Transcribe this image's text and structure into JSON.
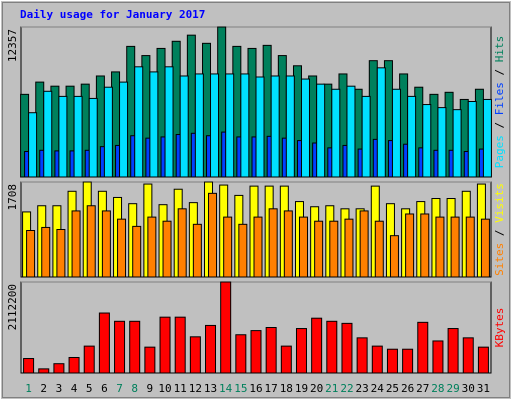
{
  "title": "Daily usage for January 2017",
  "title_color": "#0000ff",
  "categories": [
    "1",
    "2",
    "3",
    "4",
    "5",
    "6",
    "7",
    "8",
    "9",
    "10",
    "11",
    "12",
    "13",
    "14",
    "15",
    "16",
    "17",
    "18",
    "19",
    "20",
    "21",
    "22",
    "23",
    "24",
    "25",
    "26",
    "27",
    "28",
    "29",
    "30",
    "31"
  ],
  "category_colors": [
    "#00805c",
    "#000000",
    "#000000",
    "#000000",
    "#000000",
    "#000000",
    "#00805c",
    "#00805c",
    "#000000",
    "#000000",
    "#000000",
    "#000000",
    "#000000",
    "#00805c",
    "#00805c",
    "#000000",
    "#000000",
    "#000000",
    "#000000",
    "#000000",
    "#00805c",
    "#00805c",
    "#000000",
    "#000000",
    "#000000",
    "#000000",
    "#000000",
    "#00805c",
    "#00805c",
    "#000000",
    "#000000"
  ],
  "chart_data": [
    {
      "type": "bar",
      "legend_separator": " / ",
      "ylim": [
        0,
        12357
      ],
      "yticks": [
        12357
      ],
      "series": [
        {
          "name": "Pages",
          "color": "#00e0ff",
          "values": [
            5296,
            7061,
            6641,
            6641,
            6473,
            7397,
            7818,
            9078,
            8658,
            9078,
            8322,
            8490,
            8490,
            8490,
            8490,
            8238,
            8322,
            8322,
            8070,
            7650,
            7229,
            7481,
            6641,
            8994,
            7229,
            6641,
            5968,
            5716,
            5548,
            6220,
            6389
          ]
        },
        {
          "name": "Files",
          "color": "#0040ff",
          "values": [
            2100,
            2200,
            2150,
            2150,
            2200,
            2500,
            2600,
            3400,
            3200,
            3300,
            3500,
            3600,
            3400,
            3700,
            3300,
            3300,
            3350,
            3200,
            3000,
            2800,
            2400,
            2600,
            2300,
            3100,
            3000,
            2700,
            2400,
            2200,
            2200,
            2100,
            2300
          ]
        },
        {
          "name": "Hits",
          "color": "#00805c",
          "values": [
            6809,
            7818,
            7482,
            7482,
            7650,
            8322,
            8658,
            10760,
            10003,
            10592,
            11180,
            11685,
            11012,
            12357,
            10760,
            10592,
            10844,
            10003,
            9163,
            8322,
            7650,
            8490,
            7229,
            9583,
            9583,
            8490,
            7397,
            6809,
            6977,
            6389,
            7229
          ]
        }
      ]
    },
    {
      "type": "bar",
      "legend_separator": " / ",
      "ylim": [
        0,
        1708
      ],
      "yticks": [
        1708
      ],
      "series": [
        {
          "name": "Sites",
          "color": "#ff8000",
          "values": [
            836,
            891,
            854,
            1188,
            1281,
            1188,
            1040,
            910,
            1077,
            1003,
            1226,
            947,
            1504,
            1077,
            947,
            1077,
            1226,
            1188,
            1077,
            1003,
            1003,
            1040,
            1188,
            1003,
            743,
            1133,
            1133,
            1077,
            1077,
            1077,
            1040
          ]
        },
        {
          "name": "Visits",
          "color": "#ffff00",
          "values": [
            1170,
            1281,
            1281,
            1541,
            1708,
            1541,
            1430,
            1318,
            1671,
            1300,
            1578,
            1337,
            1708,
            1653,
            1467,
            1634,
            1634,
            1634,
            1356,
            1263,
            1281,
            1226,
            1226,
            1634,
            1318,
            1226,
            1356,
            1411,
            1411,
            1541,
            1671
          ]
        }
      ]
    },
    {
      "type": "bar",
      "ylim": [
        0,
        2112200
      ],
      "yticks": [
        2112200
      ],
      "series": [
        {
          "name": "KBytes",
          "color": "#ff0000",
          "values": [
            336000,
            96000,
            216000,
            360000,
            624000,
            1392000,
            1200000,
            1200000,
            600000,
            1296000,
            1296000,
            840000,
            1104000,
            2112200,
            888000,
            984000,
            1056000,
            624000,
            1032000,
            1272000,
            1200000,
            1152000,
            816000,
            624000,
            552000,
            552000,
            1176000,
            744000,
            1032000,
            816000,
            600000
          ]
        }
      ]
    }
  ]
}
